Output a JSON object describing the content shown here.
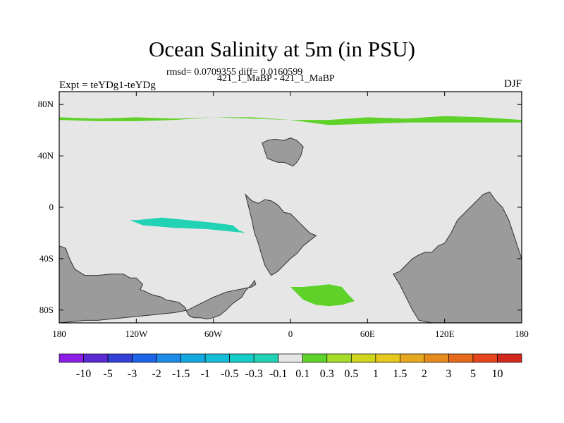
{
  "title": "Ocean Salinity at 5m (in PSU)",
  "stats": "rmsd= 0.0709355 diff= 0.0160599",
  "subtitle": "421_1_MaBP - 421_1_MaBP",
  "experiment_label": "Expt = teYDg1-teYDg",
  "season": "DJF",
  "colors": {
    "ocean_background": "#e6e6e6",
    "land": "#9b9b9b",
    "positive_low": "#5fd22a",
    "positive_mid": "#a5dc2a",
    "positive_high": "#cfd51e",
    "negative_low": "#22d2b4",
    "negative_mid": "#16b6d6"
  },
  "chart_data": {
    "type": "heatmap",
    "projection": "cylindrical-equidistant",
    "x_range": [
      -180,
      180
    ],
    "y_range": [
      -90,
      90
    ],
    "x_ticks": [
      {
        "value": -180,
        "label": "180"
      },
      {
        "value": -120,
        "label": "120W"
      },
      {
        "value": -60,
        "label": "60W"
      },
      {
        "value": 0,
        "label": "0"
      },
      {
        "value": 60,
        "label": "60E"
      },
      {
        "value": 120,
        "label": "120E"
      },
      {
        "value": 180,
        "label": "180"
      }
    ],
    "y_ticks": [
      {
        "value": 80,
        "label": "80N"
      },
      {
        "value": 40,
        "label": "40N"
      },
      {
        "value": 0,
        "label": "0"
      },
      {
        "value": -40,
        "label": "40S"
      },
      {
        "value": -80,
        "label": "80S"
      }
    ],
    "colorbar": {
      "levels": [
        "-10",
        "-5",
        "-3",
        "-2",
        "-1.5",
        "-1",
        "-0.5",
        "-0.3",
        "-0.1",
        "0.1",
        "0.3",
        "0.5",
        "1",
        "1.5",
        "2",
        "3",
        "5",
        "10"
      ],
      "colors": [
        "#8c1ee6",
        "#5a2ad2",
        "#3240d6",
        "#1e64e6",
        "#1e8ce6",
        "#14a8e0",
        "#16bed8",
        "#16ccc8",
        "#22d2b4",
        "#e6e6e6",
        "#5fd22a",
        "#a5dc2a",
        "#cfd51e",
        "#e6c81e",
        "#e6a81e",
        "#e68c1e",
        "#e66a1e",
        "#e6461e",
        "#d2281e"
      ]
    },
    "land_regions": [
      {
        "name": "north-america",
        "lon": [
          -180,
          -175,
          -172,
          -168,
          -165,
          -160,
          -150,
          -140,
          -130,
          -125,
          -120,
          -115,
          -117,
          -112,
          -108,
          -100,
          -97,
          -92,
          -87,
          -82,
          -80,
          -78,
          -75,
          -70,
          -65,
          -60,
          -55,
          -50,
          -45,
          -38,
          -35,
          -30,
          -28,
          -27,
          -30,
          -40,
          -50,
          -60,
          -70,
          -80,
          -90,
          -100,
          -110,
          -120,
          -130,
          -140,
          -150,
          -160,
          -170,
          -180
        ],
        "lat": [
          -30,
          -32,
          -40,
          -48,
          -50,
          -53,
          -53,
          -52,
          -52,
          -55,
          -55,
          -60,
          -64,
          -66,
          -68,
          -70,
          -72,
          -73,
          -74,
          -78,
          -83,
          -85,
          -86,
          -86,
          -87,
          -86,
          -84,
          -80,
          -75,
          -70,
          -65,
          -60,
          -57,
          -60,
          -62,
          -64,
          -66,
          -70,
          -75,
          -80,
          -82,
          -83,
          -84,
          -85,
          -86,
          -87,
          -88,
          -88,
          -89,
          -90
        ]
      },
      {
        "name": "south-america",
        "lon": [
          -35,
          -30,
          -25,
          -20,
          -15,
          -10,
          -5,
          0,
          5,
          10,
          15,
          20,
          15,
          10,
          5,
          0,
          -5,
          -10,
          -15,
          -20,
          -23,
          -25,
          -28,
          -30,
          -32,
          -35
        ],
        "lat": [
          10,
          5,
          3,
          6,
          5,
          2,
          -4,
          -5,
          -10,
          -15,
          -20,
          -22,
          -26,
          -30,
          -36,
          -40,
          -45,
          -50,
          -53,
          -45,
          -35,
          -28,
          -20,
          -10,
          -2,
          10
        ]
      },
      {
        "name": "europe-africa-island",
        "lon": [
          -22,
          -18,
          -12,
          -5,
          0,
          5,
          10,
          8,
          5,
          2,
          -5,
          -10,
          -18,
          -22
        ],
        "lat": [
          50,
          52,
          53,
          52,
          54,
          52,
          47,
          40,
          35,
          32,
          35,
          35,
          38,
          50
        ]
      },
      {
        "name": "east-asia",
        "lon": [
          80,
          85,
          90,
          95,
          100,
          105,
          110,
          115,
          120,
          125,
          130,
          135,
          140,
          145,
          150,
          155,
          160,
          165,
          170,
          175,
          180,
          180,
          175,
          160,
          150,
          140,
          130,
          120,
          110,
          100,
          95,
          90,
          85,
          80
        ],
        "lat": [
          -52,
          -50,
          -45,
          -40,
          -37,
          -35,
          -35,
          -30,
          -28,
          -20,
          -10,
          -5,
          0,
          5,
          10,
          12,
          5,
          0,
          -10,
          -25,
          -40,
          -90,
          -90,
          -90,
          -90,
          -90,
          -90,
          -90,
          -90,
          -88,
          -80,
          -70,
          -60,
          -52
        ]
      }
    ],
    "anomaly_regions": [
      {
        "class": "positive",
        "lon": [
          -180,
          -150,
          -120,
          -90,
          -60,
          -30,
          0,
          30,
          60,
          90,
          120,
          150,
          180,
          180,
          150,
          120,
          90,
          60,
          30,
          0,
          -30,
          -60,
          -90,
          -120,
          -150,
          -180
        ],
        "lat": [
          68,
          67,
          67,
          68,
          70,
          70,
          68,
          64,
          65,
          66,
          66,
          66,
          66,
          68,
          70,
          71,
          69,
          70,
          68,
          68,
          69,
          70,
          69,
          70,
          69,
          70
        ]
      },
      {
        "class": "negative",
        "lon": [
          -120,
          -100,
          -80,
          -60,
          -45,
          -40,
          -35,
          -45,
          -65,
          -90,
          -115,
          -125
        ],
        "lat": [
          -10,
          -8,
          -10,
          -12,
          -14,
          -18,
          -20,
          -19,
          -17,
          -16,
          -14,
          -10
        ]
      },
      {
        "class": "negative",
        "lon": [
          90,
          95,
          110,
          120,
          130,
          150,
          160,
          160,
          150,
          130,
          115,
          100,
          90
        ],
        "lat": [
          -73,
          -75,
          -78,
          -80,
          -83,
          -82,
          -78,
          -75,
          -74,
          -74,
          -75,
          -77,
          -73
        ]
      },
      {
        "class": "positive",
        "lon": [
          0,
          10,
          20,
          30,
          40,
          45,
          50,
          40,
          30,
          20,
          10,
          0
        ],
        "lat": [
          -62,
          -62,
          -61,
          -60,
          -62,
          -68,
          -73,
          -76,
          -77,
          -76,
          -72,
          -62
        ]
      }
    ]
  }
}
